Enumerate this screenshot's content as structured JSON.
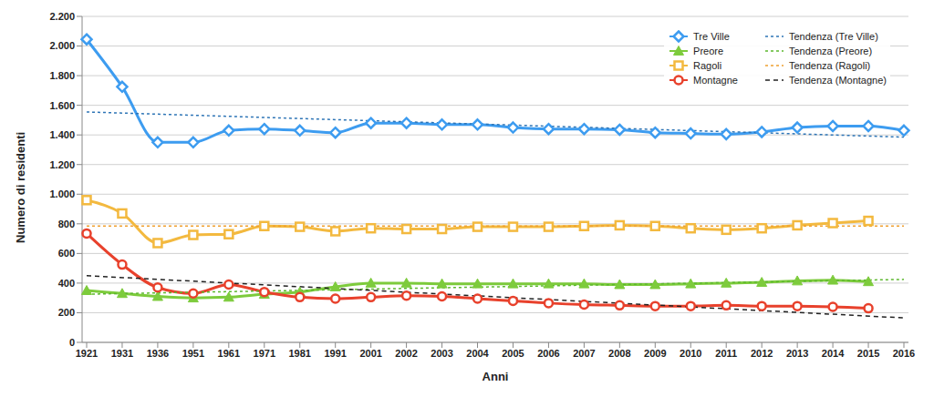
{
  "chart_data": {
    "type": "line",
    "x_label": "Anni",
    "y_label": "Numero di residenti",
    "categories": [
      "1921",
      "1931",
      "1936",
      "1951",
      "1961",
      "1971",
      "1981",
      "1991",
      "2001",
      "2002",
      "2003",
      "2004",
      "2005",
      "2006",
      "2007",
      "2008",
      "2009",
      "2010",
      "2011",
      "2012",
      "2013",
      "2014",
      "2015",
      "2016"
    ],
    "series": [
      {
        "name": "Tre Ville",
        "color": "#3d9cf0",
        "marker": "diamond",
        "line_style": "solid",
        "values": [
          2045,
          1725,
          1350,
          1350,
          1430,
          1440,
          1430,
          1415,
          1480,
          1480,
          1470,
          1470,
          1450,
          1440,
          1440,
          1435,
          1415,
          1410,
          1405,
          1420,
          1450,
          1460,
          1460,
          1430
        ]
      },
      {
        "name": "Preore",
        "color": "#7dcb3c",
        "marker": "triangle",
        "line_style": "solid",
        "values": [
          350,
          330,
          310,
          300,
          305,
          325,
          340,
          375,
          400,
          400,
          395,
          395,
          395,
          395,
          395,
          390,
          390,
          395,
          400,
          405,
          415,
          420,
          410,
          null
        ]
      },
      {
        "name": "Ragoli",
        "color": "#f3b93f",
        "marker": "square",
        "line_style": "solid",
        "values": [
          960,
          870,
          670,
          725,
          730,
          785,
          780,
          750,
          770,
          765,
          765,
          780,
          780,
          780,
          785,
          790,
          785,
          770,
          760,
          770,
          790,
          805,
          820,
          null
        ]
      },
      {
        "name": "Montagne",
        "color": "#e8412c",
        "marker": "circle",
        "line_style": "solid",
        "values": [
          735,
          525,
          370,
          330,
          390,
          340,
          305,
          295,
          305,
          315,
          310,
          295,
          280,
          265,
          255,
          250,
          245,
          245,
          250,
          245,
          245,
          240,
          230,
          null
        ]
      },
      {
        "name": "Tendenza (Tre Ville)",
        "color": "#2e75b6",
        "marker": "none",
        "line_style": "dotted",
        "values": [
          1555,
          null,
          null,
          null,
          null,
          null,
          null,
          null,
          null,
          null,
          null,
          null,
          null,
          null,
          null,
          null,
          null,
          null,
          null,
          null,
          null,
          null,
          null,
          1385
        ]
      },
      {
        "name": "Tendenza (Preore)",
        "color": "#5cb82e",
        "marker": "none",
        "line_style": "dotted",
        "values": [
          325,
          null,
          null,
          null,
          null,
          null,
          null,
          null,
          null,
          null,
          null,
          null,
          null,
          null,
          null,
          null,
          null,
          null,
          null,
          null,
          null,
          null,
          null,
          425
        ]
      },
      {
        "name": "Tendenza (Ragoli)",
        "color": "#f0a030",
        "marker": "none",
        "line_style": "dotted",
        "values": [
          785,
          null,
          null,
          null,
          null,
          null,
          null,
          null,
          null,
          null,
          null,
          null,
          null,
          null,
          null,
          null,
          null,
          null,
          null,
          null,
          null,
          null,
          null,
          785
        ]
      },
      {
        "name": "Tendenza (Montagne)",
        "color": "#222222",
        "marker": "none",
        "line_style": "dashed",
        "values": [
          450,
          null,
          null,
          null,
          null,
          null,
          null,
          null,
          null,
          null,
          null,
          null,
          null,
          null,
          null,
          null,
          null,
          null,
          null,
          null,
          null,
          null,
          null,
          165
        ]
      }
    ],
    "ylim": [
      0,
      2200
    ],
    "yticks": [
      0,
      200,
      400,
      600,
      800,
      {
        "value": 1000,
        "label": "1.000"
      },
      {
        "value": 1200,
        "label": "1.200"
      },
      {
        "value": 1400,
        "label": "1.400"
      },
      {
        "value": 1600,
        "label": "1.600"
      },
      {
        "value": 1800,
        "label": "1.800"
      },
      {
        "value": 2000,
        "label": "2.000"
      },
      {
        "value": 2200,
        "label": "2.200"
      }
    ],
    "grid": true,
    "legend": "top-right"
  }
}
